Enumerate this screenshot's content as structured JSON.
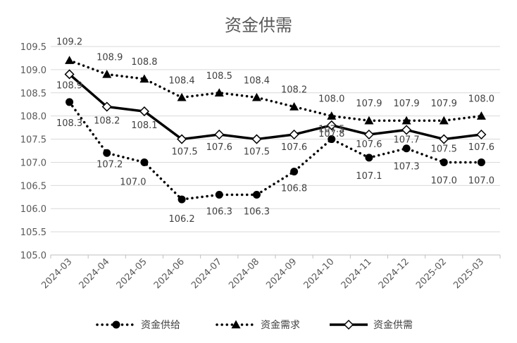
{
  "chart_data": {
    "type": "line",
    "title": "资金供需",
    "xlabel": "",
    "ylabel": "",
    "categories": [
      "2024-03",
      "2024-04",
      "2024-05",
      "2024-06",
      "2024-07",
      "2024-08",
      "2024-09",
      "2024-10",
      "2024-11",
      "2024-12",
      "2025-02",
      "2025-03"
    ],
    "ylim": [
      105.0,
      109.5
    ],
    "ytick_step": 0.5,
    "grid": true,
    "legend_position": "bottom",
    "series": [
      {
        "name": "资金供给",
        "style": "dotted",
        "marker": "circle",
        "color": "#000000",
        "values": [
          108.3,
          107.2,
          107.0,
          106.2,
          106.3,
          106.3,
          106.8,
          107.5,
          107.1,
          107.3,
          107.0,
          107.0
        ],
        "labels": [
          "108.3",
          "107.2",
          "107.0",
          "106.2",
          "106.3",
          "106.3",
          "106.8",
          "107.5",
          "107.1",
          "107.3",
          "107.0",
          "107.0"
        ]
      },
      {
        "name": "资金需求",
        "style": "dotted",
        "marker": "triangle",
        "color": "#000000",
        "values": [
          109.2,
          108.9,
          108.8,
          108.4,
          108.5,
          108.4,
          108.2,
          108.0,
          107.9,
          107.9,
          107.9,
          108.0
        ],
        "labels": [
          "109.2",
          "108.9",
          "108.8",
          "108.4",
          "108.5",
          "108.4",
          "108.2",
          "108.0",
          "107.9",
          "107.9",
          "107.9",
          "108.0"
        ]
      },
      {
        "name": "资金供需",
        "style": "solid",
        "marker": "diamond",
        "color": "#000000",
        "values": [
          108.9,
          108.2,
          108.1,
          107.5,
          107.6,
          107.5,
          107.6,
          107.8,
          107.6,
          107.7,
          107.5,
          107.6
        ],
        "labels": [
          "108.9",
          "108.2",
          "108.1",
          "107.5",
          "107.6",
          "107.5",
          "107.6",
          "107.8",
          "107.6",
          "107.7",
          "107.5",
          "107.6"
        ]
      }
    ]
  }
}
